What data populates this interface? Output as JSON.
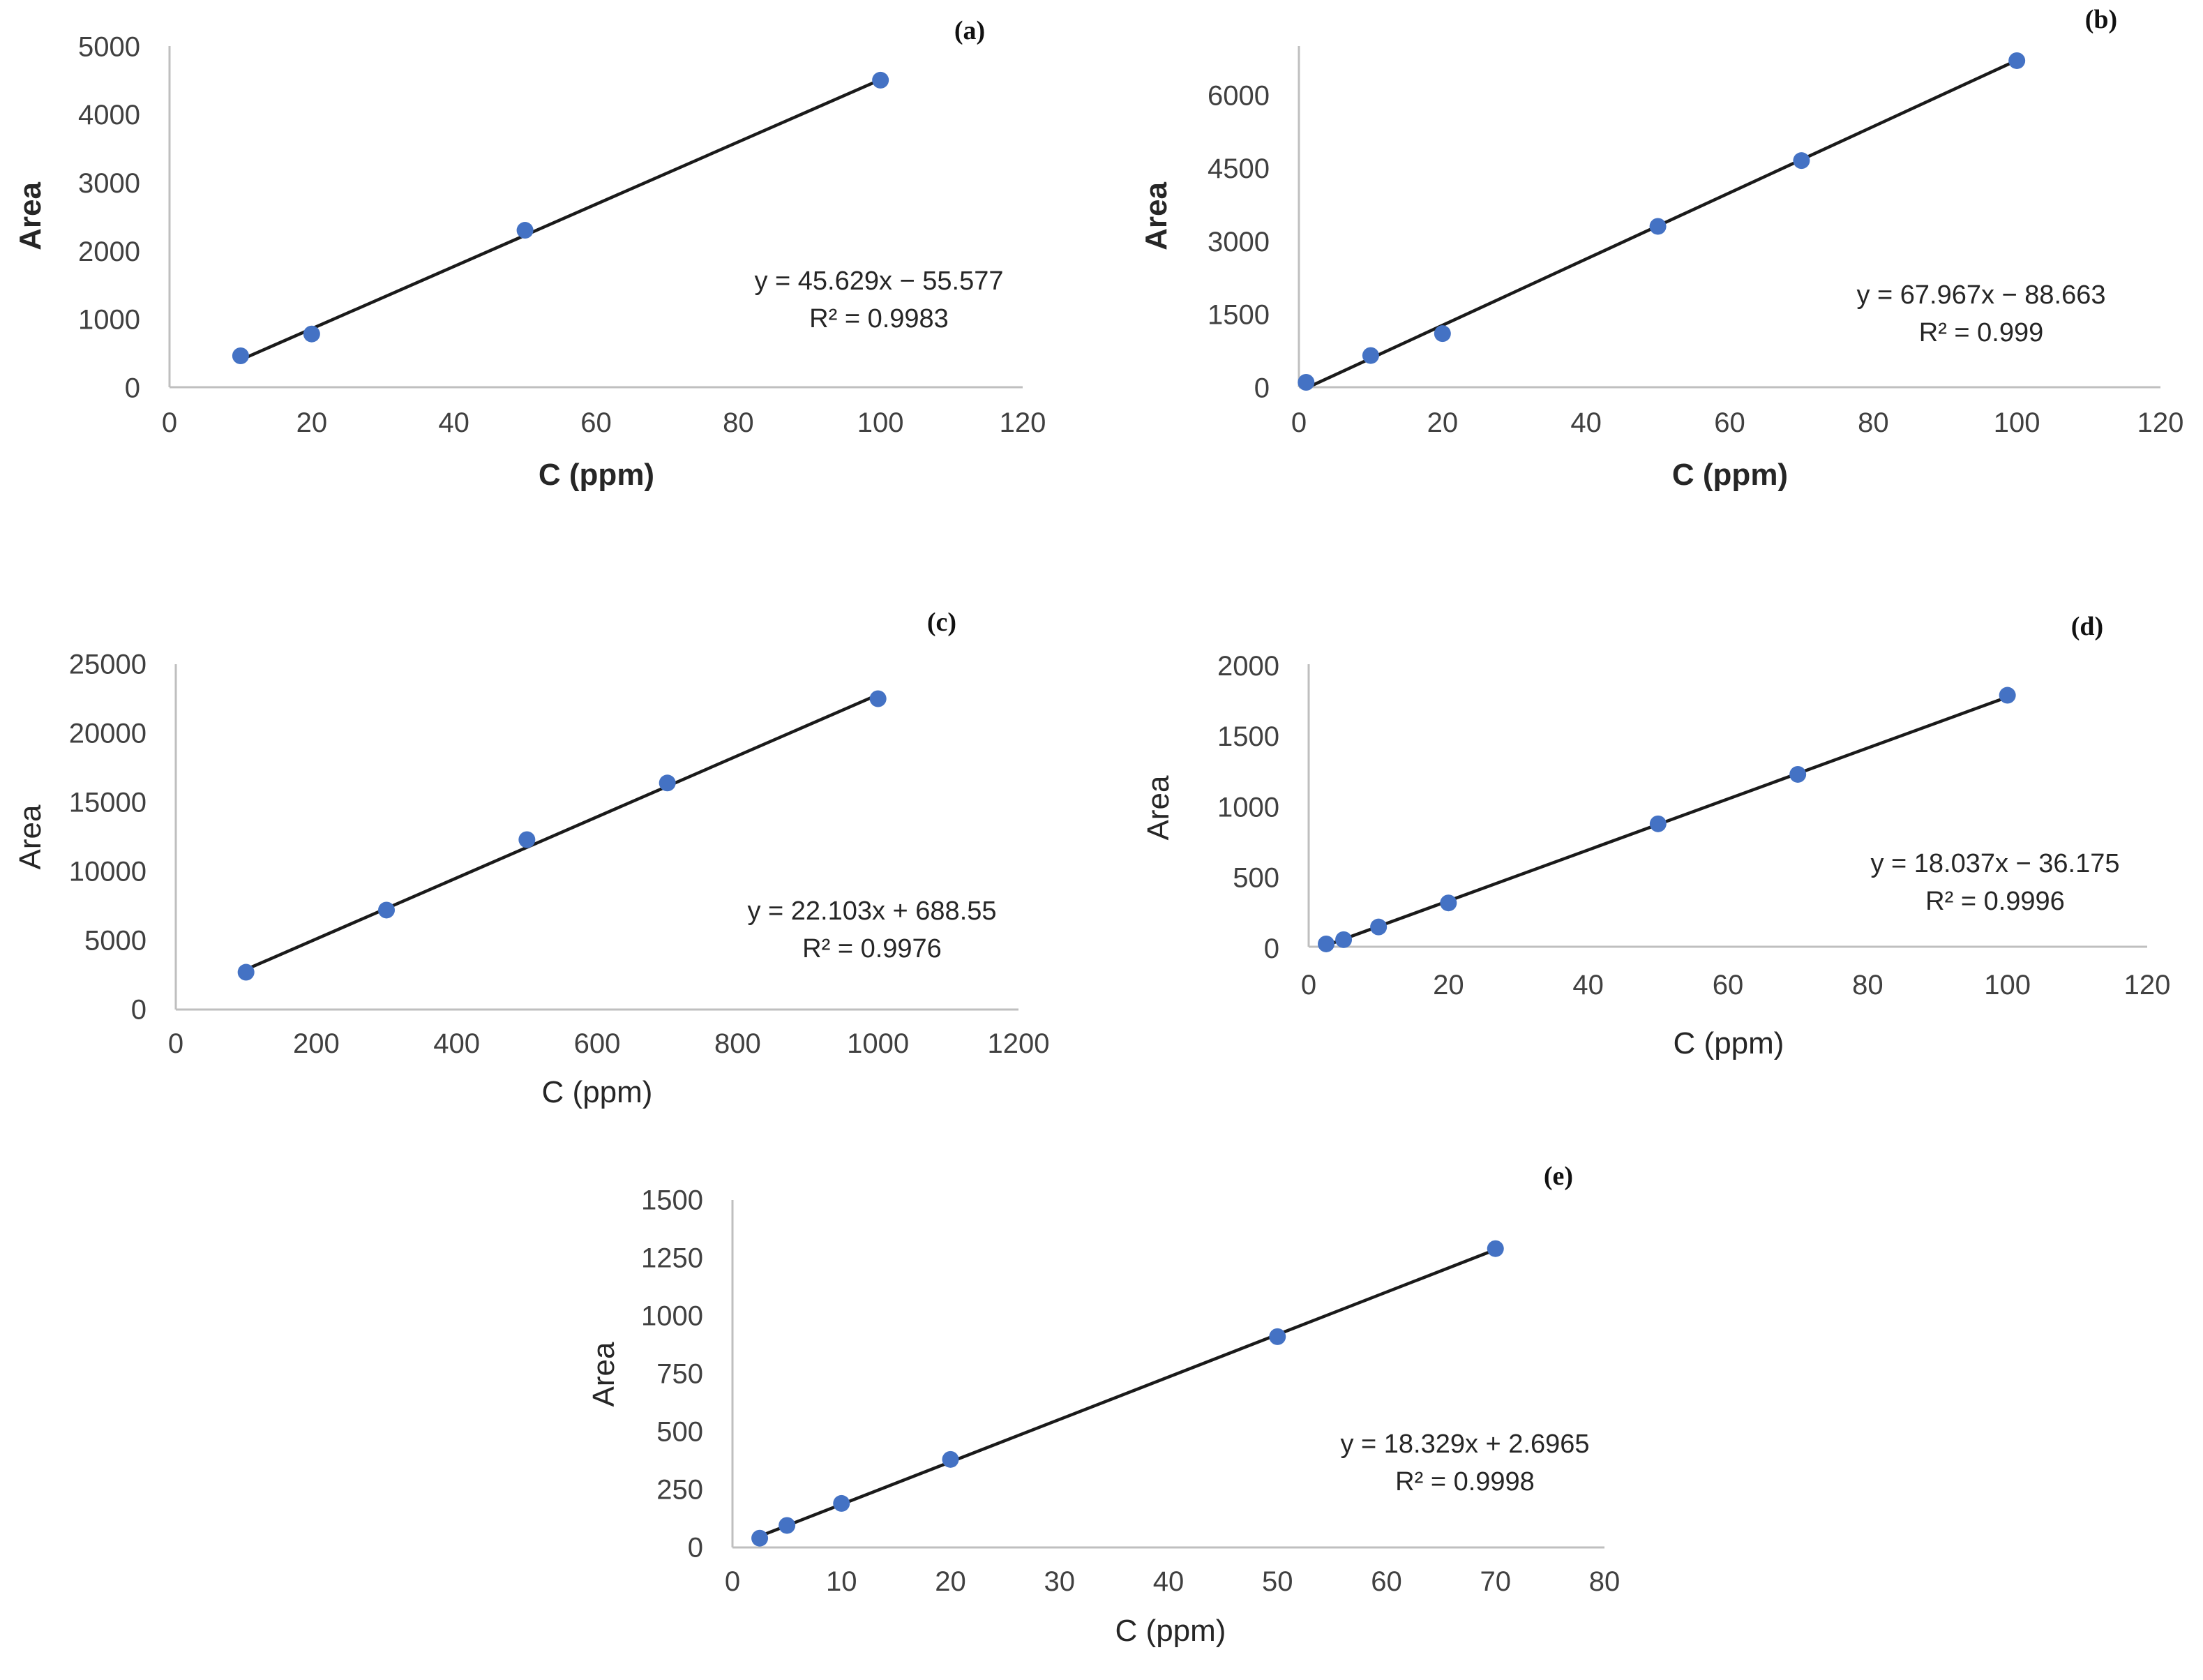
{
  "chart_data": [
    {
      "type": "scatter",
      "panel_label": "(a)",
      "xlabel": "C (ppm)",
      "ylabel": "Area",
      "labels_bold": true,
      "xlim": [
        0,
        120
      ],
      "ylim": [
        0,
        5000
      ],
      "xticks": [
        0,
        20,
        40,
        60,
        80,
        100,
        120
      ],
      "yticks": [
        0,
        1000,
        2000,
        3000,
        4000,
        5000
      ],
      "series": [
        {
          "name": "Area",
          "x": [
            10,
            20,
            50,
            100
          ],
          "y": [
            460,
            780,
            2300,
            4500
          ]
        }
      ],
      "trendline": {
        "slope": 45.629,
        "intercept": -55.577
      },
      "equation": "y = 45.629x − 55.577",
      "r2": "R² = 0.9983"
    },
    {
      "type": "scatter",
      "panel_label": "(b)",
      "xlabel": "C (ppm)",
      "ylabel": "Area",
      "labels_bold": true,
      "xlim": [
        0,
        120
      ],
      "ylim": [
        0,
        7000
      ],
      "xticks": [
        0,
        20,
        40,
        60,
        80,
        100,
        120
      ],
      "yticks": [
        0,
        1500,
        3000,
        4500,
        6000
      ],
      "series": [
        {
          "name": "Area",
          "x": [
            1,
            10,
            20,
            50,
            70,
            100
          ],
          "y": [
            100,
            650,
            1100,
            3300,
            4650,
            6700
          ]
        }
      ],
      "trendline": {
        "slope": 67.967,
        "intercept": -88.663
      },
      "equation": "y = 67.967x − 88.663",
      "r2": "R² = 0.999"
    },
    {
      "type": "scatter",
      "panel_label": "(c)",
      "xlabel": "C (ppm)",
      "ylabel": "Area",
      "labels_bold": false,
      "xlim": [
        0,
        1200
      ],
      "ylim": [
        0,
        25000
      ],
      "xticks": [
        0,
        200,
        400,
        600,
        800,
        1000,
        1200
      ],
      "yticks": [
        0,
        5000,
        10000,
        15000,
        20000,
        25000
      ],
      "series": [
        {
          "name": "Area",
          "x": [
            100,
            300,
            500,
            700,
            1000
          ],
          "y": [
            2700,
            7200,
            12300,
            16400,
            22500
          ]
        }
      ],
      "trendline": {
        "slope": 22.103,
        "intercept": 688.55
      },
      "equation": "y = 22.103x + 688.55",
      "r2": "R² = 0.9976"
    },
    {
      "type": "scatter",
      "panel_label": "(d)",
      "xlabel": "C (ppm)",
      "ylabel": "Area",
      "labels_bold": false,
      "xlim": [
        0,
        120
      ],
      "ylim": [
        0,
        2000
      ],
      "xticks": [
        0,
        20,
        40,
        60,
        80,
        100,
        120
      ],
      "yticks": [
        0,
        500,
        1000,
        1500,
        2000
      ],
      "series": [
        {
          "name": "Area",
          "x": [
            2.5,
            5,
            10,
            20,
            50,
            70,
            100
          ],
          "y": [
            20,
            50,
            140,
            310,
            870,
            1220,
            1780
          ]
        }
      ],
      "trendline": {
        "slope": 18.037,
        "intercept": -36.175
      },
      "equation": "y = 18.037x − 36.175",
      "r2": "R² = 0.9996"
    },
    {
      "type": "scatter",
      "panel_label": "(e)",
      "xlabel": "C (ppm)",
      "ylabel": "Area",
      "labels_bold": false,
      "xlim": [
        0,
        80
      ],
      "ylim": [
        0,
        1500
      ],
      "xticks": [
        0,
        10,
        20,
        30,
        40,
        50,
        60,
        70,
        80
      ],
      "yticks": [
        0,
        250,
        500,
        750,
        1000,
        1250,
        1500
      ],
      "series": [
        {
          "name": "Area",
          "x": [
            2.5,
            5,
            10,
            20,
            50,
            70
          ],
          "y": [
            40,
            95,
            190,
            380,
            910,
            1290
          ]
        }
      ],
      "trendline": {
        "slope": 18.329,
        "intercept": 2.6965
      },
      "equation": "y = 18.329x + 2.6965",
      "r2": "R² = 0.9998"
    }
  ]
}
